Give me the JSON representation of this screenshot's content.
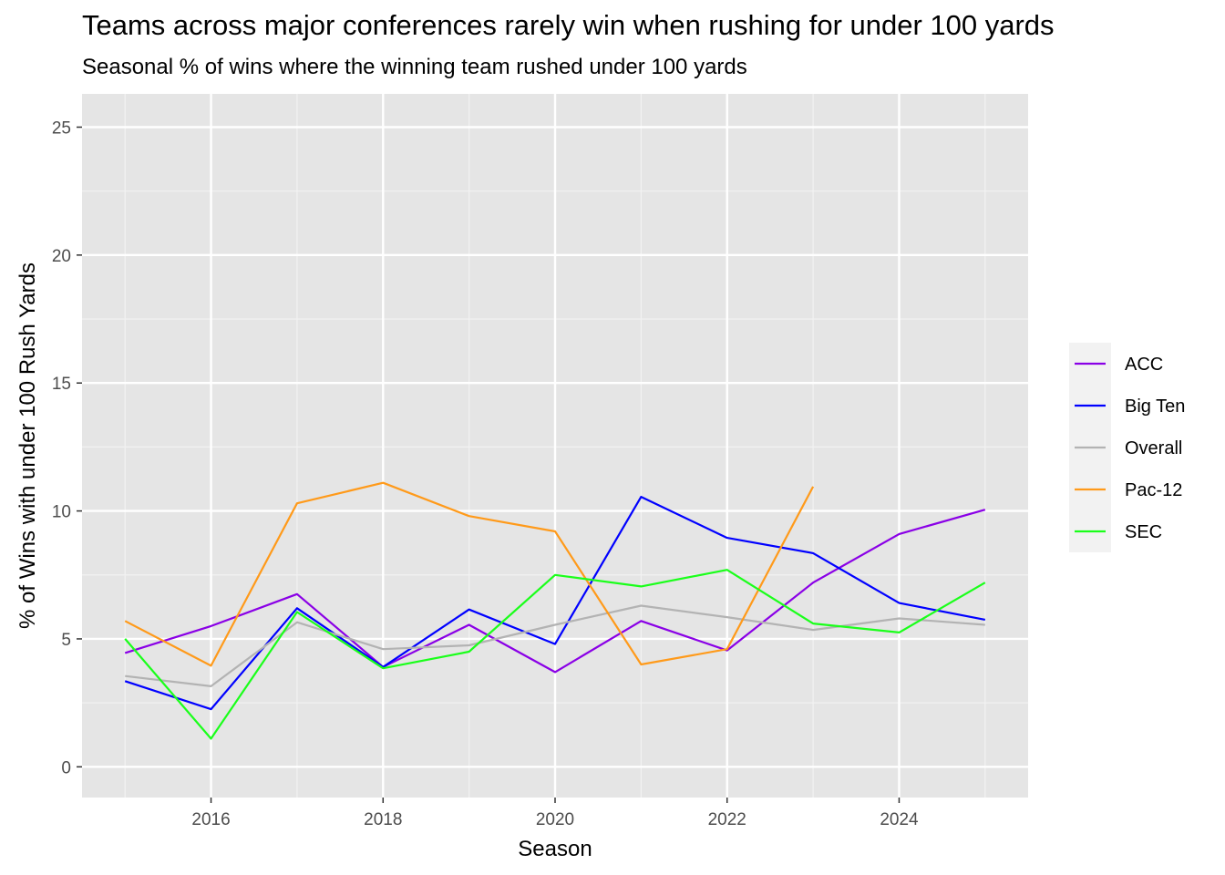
{
  "chart_data": {
    "type": "line",
    "title": "Teams across major conferences rarely win when rushing for under 100 yards",
    "subtitle": "Seasonal % of wins where the winning team rushed under 100 yards",
    "xlabel": "Season",
    "ylabel": "% of Wins with under 100 Rush Yards",
    "xlim": [
      2014.5,
      2025.5
    ],
    "ylim": [
      -1.2,
      26.3
    ],
    "x_ticks": [
      2016,
      2018,
      2020,
      2022,
      2024
    ],
    "y_ticks": [
      0,
      5,
      10,
      15,
      20,
      25
    ],
    "x_tick_labels": [
      "2016",
      "2018",
      "2020",
      "2022",
      "2024"
    ],
    "y_tick_labels": [
      "0",
      "5",
      "10",
      "15",
      "20",
      "25"
    ],
    "grid": true,
    "legend_position": "right",
    "background": "#e5e5e5",
    "series": [
      {
        "name": "ACC",
        "color": "#8a00e6",
        "x": [
          2015,
          2016,
          2017,
          2018,
          2019,
          2020,
          2021,
          2022,
          2023,
          2024,
          2025
        ],
        "values": [
          4.45,
          5.5,
          6.75,
          3.9,
          5.55,
          3.7,
          5.7,
          4.55,
          7.2,
          9.1,
          10.05
        ]
      },
      {
        "name": "Big Ten",
        "color": "#0000ff",
        "x": [
          2015,
          2016,
          2017,
          2018,
          2019,
          2020,
          2021,
          2022,
          2023,
          2024,
          2025
        ],
        "values": [
          3.35,
          2.25,
          6.2,
          3.9,
          6.15,
          4.8,
          10.55,
          8.95,
          8.35,
          6.4,
          5.75
        ]
      },
      {
        "name": "Overall",
        "color": "#b3b3b3",
        "x": [
          2015,
          2016,
          2017,
          2018,
          2019,
          2020,
          2021,
          2022,
          2023,
          2024,
          2025
        ],
        "values": [
          3.55,
          3.15,
          5.65,
          4.6,
          4.75,
          5.55,
          6.3,
          5.85,
          5.35,
          5.8,
          5.55
        ]
      },
      {
        "name": "Pac-12",
        "color": "#ff9a1a",
        "x": [
          2015,
          2016,
          2017,
          2018,
          2019,
          2020,
          2021,
          2022,
          2023
        ],
        "values": [
          5.7,
          3.95,
          10.3,
          11.1,
          9.8,
          9.2,
          4.0,
          4.6,
          10.95
        ]
      },
      {
        "name": "SEC",
        "color": "#1aff1a",
        "x": [
          2015,
          2016,
          2017,
          2018,
          2019,
          2020,
          2021,
          2022,
          2023,
          2024,
          2025
        ],
        "values": [
          5.0,
          1.1,
          6.05,
          3.85,
          4.5,
          7.5,
          7.05,
          7.7,
          5.6,
          5.25,
          7.2
        ]
      }
    ]
  }
}
